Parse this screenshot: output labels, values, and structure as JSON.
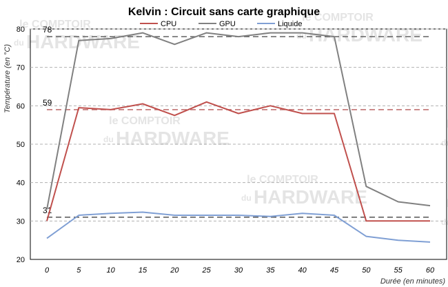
{
  "chart_data": {
    "type": "line",
    "title": "Kelvin : Circuit sans carte graphique",
    "xlabel": "Durée (en minutes)",
    "ylabel": "Température  (en °C)",
    "xlim": [
      0,
      60
    ],
    "ylim": [
      20,
      80
    ],
    "x": [
      0,
      5,
      10,
      15,
      20,
      25,
      30,
      35,
      40,
      45,
      50,
      55,
      60
    ],
    "x_ticks": [
      "0",
      "5",
      "10",
      "15",
      "20",
      "25",
      "30",
      "35",
      "40",
      "45",
      "50",
      "55",
      "60"
    ],
    "y_ticks": [
      "20",
      "30",
      "40",
      "50",
      "60",
      "70",
      "80"
    ],
    "legend_position": "top",
    "grid": "horizontal-dashed",
    "series": [
      {
        "name": "CPU",
        "color": "#c0504d",
        "values": [
          30,
          59.5,
          59,
          60.5,
          57.5,
          61,
          58,
          60,
          58,
          58,
          30,
          30,
          30
        ]
      },
      {
        "name": "GPU",
        "color": "#808080",
        "values": [
          33,
          77,
          77.5,
          79,
          76,
          79,
          78,
          79,
          79,
          78,
          39,
          35,
          34
        ]
      },
      {
        "name": "Liquide",
        "color": "#7f9fd4",
        "values": [
          25.5,
          31.5,
          32,
          32.3,
          31.5,
          31.5,
          31.5,
          31.2,
          32,
          31.5,
          26,
          25,
          24.5
        ]
      }
    ],
    "reference_lines": [
      {
        "value": 78,
        "label": "78",
        "color": "#606060"
      },
      {
        "value": 59,
        "label": "59",
        "color": "#c07070"
      },
      {
        "value": 31,
        "label": "31",
        "color": "#606060"
      }
    ]
  },
  "watermark": {
    "line1": "le COMPTOIR",
    "line2": "du",
    "line3": "HARDWARE"
  }
}
